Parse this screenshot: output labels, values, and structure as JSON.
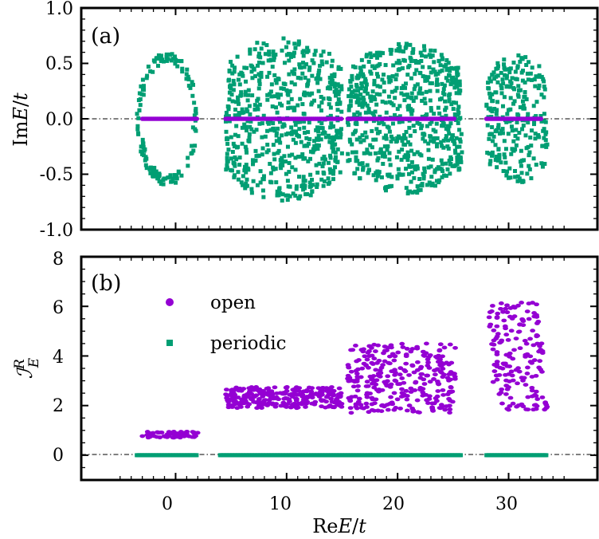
{
  "colors": {
    "open": "#9400d3",
    "periodic": "#009e73",
    "axis": "#000000"
  },
  "chart_data": [
    {
      "type": "scatter",
      "panel_label": "(a)",
      "ylabel": "ImE/t",
      "ylabel_parts": {
        "prefix": "Im",
        "var": "E",
        "slash": "/",
        "unit": "t"
      },
      "xlim": [
        -8.5,
        38
      ],
      "ylim": [
        -1.0,
        1.0
      ],
      "y_ticks": [
        1.0,
        0.5,
        0.0,
        -0.5,
        -1.0
      ],
      "y_tick_labels": [
        "1.0",
        "0.5",
        "0.0",
        "-0.5",
        "-1.0"
      ],
      "reference_line": 0,
      "series": [
        {
          "name": "periodic",
          "marker": "square",
          "clusters": [
            {
              "shape": "ring",
              "x_range": [
                -3.5,
                2.0
              ],
              "y_amp": 0.6,
              "count": 140
            },
            {
              "shape": "band",
              "x_range": [
                4.5,
                15.0
              ],
              "y_amp": 0.74,
              "count": 620
            },
            {
              "shape": "band",
              "x_range": [
                15.5,
                25.8
              ],
              "y_amp": 0.68,
              "count": 640
            },
            {
              "shape": "band",
              "x_range": [
                28.0,
                33.5
              ],
              "y_amp": 0.58,
              "count": 260
            }
          ]
        },
        {
          "name": "open",
          "marker": "circle",
          "segments": [
            {
              "x_range": [
                -3.0,
                2.0
              ],
              "y": 0
            },
            {
              "x_range": [
                4.5,
                15.0
              ],
              "y": 0
            },
            {
              "x_range": [
                15.5,
                25.2
              ],
              "y": 0
            },
            {
              "x_range": [
                28.0,
                33.0
              ],
              "y": 0
            }
          ]
        }
      ]
    },
    {
      "type": "scatter",
      "panel_label": "(b)",
      "ylabel": "I_E^R",
      "ylabel_parts": {
        "base": "ℐ",
        "sub": "E",
        "sup": "R"
      },
      "xlabel": "ReE/t",
      "xlabel_parts": {
        "prefix": "Re",
        "var": "E",
        "slash": "/",
        "unit": "t"
      },
      "xlim": [
        -8.5,
        38
      ],
      "ylim": [
        -1,
        8
      ],
      "x_ticks": [
        0,
        10,
        20,
        30
      ],
      "x_tick_labels": [
        "0",
        "10",
        "20",
        "30"
      ],
      "y_ticks": [
        8,
        6,
        4,
        2,
        0
      ],
      "y_tick_labels": [
        "8",
        "6",
        "4",
        "2",
        "0"
      ],
      "reference_line": 0,
      "legend": {
        "location": "upper-left",
        "entries": [
          "open",
          "periodic"
        ]
      },
      "series": [
        {
          "name": "open",
          "marker": "circle",
          "clusters": [
            {
              "x_range": [
                -3.0,
                2.0
              ],
              "y_range": [
                0.7,
                0.95
              ],
              "count": 60
            },
            {
              "x_range": [
                4.5,
                15.0
              ],
              "y_range": [
                1.9,
                2.75
              ],
              "count": 280
            },
            {
              "x_range": [
                15.5,
                25.2
              ],
              "y_range": [
                1.7,
                4.5
              ],
              "count": 300
            },
            {
              "x_range": [
                28.0,
                33.5
              ],
              "y_range": [
                1.8,
                6.2
              ],
              "count": 170
            }
          ]
        },
        {
          "name": "periodic",
          "marker": "square",
          "segments": [
            {
              "x_range": [
                -3.5,
                2.0
              ],
              "y": 0
            },
            {
              "x_range": [
                4.0,
                25.8
              ],
              "y": 0
            },
            {
              "x_range": [
                28.0,
                33.5
              ],
              "y": 0
            }
          ]
        }
      ]
    }
  ]
}
